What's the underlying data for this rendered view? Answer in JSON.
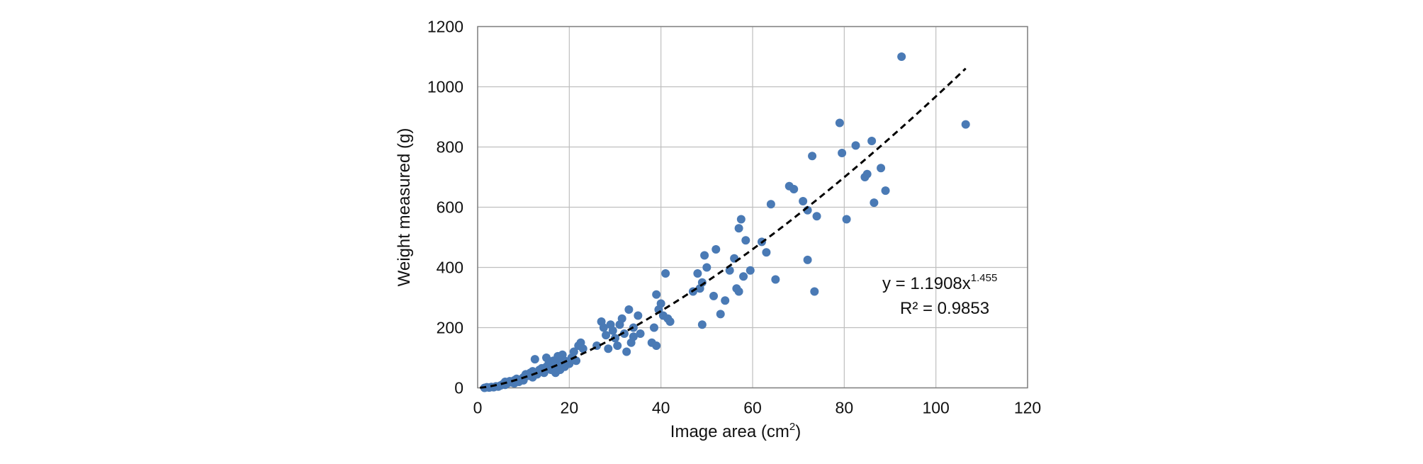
{
  "chart_data": {
    "type": "scatter",
    "title": "",
    "xlabel": "Image area (cm",
    "xlabel_sup": "2",
    "xlabel_tail": ")",
    "ylabel": "Weight measured (g)",
    "xlim": [
      0,
      120
    ],
    "ylim": [
      0,
      1200
    ],
    "x_ticks": [
      0,
      20,
      40,
      60,
      80,
      100,
      120
    ],
    "y_ticks": [
      0,
      200,
      400,
      600,
      800,
      1000,
      1200
    ],
    "x_tick_labels": [
      "0",
      "20",
      "40",
      "60",
      "80",
      "100",
      "120"
    ],
    "y_tick_labels": [
      "0",
      "200",
      "400",
      "600",
      "800",
      "1000",
      "1200"
    ],
    "grid": true,
    "legend": "none",
    "colors": {
      "points": "#4a7ab5",
      "trendline": "#000000",
      "grid": "#bfbfbf",
      "frame": "#808080"
    },
    "series": [
      {
        "values": [
          [
            1.5,
            0
          ],
          [
            2,
            2
          ],
          [
            2.5,
            1
          ],
          [
            3,
            3
          ],
          [
            3.5,
            2
          ],
          [
            4,
            5
          ],
          [
            4.5,
            4
          ],
          [
            5,
            8
          ],
          [
            5.5,
            12
          ],
          [
            6,
            10
          ],
          [
            6,
            20
          ],
          [
            6.5,
            15
          ],
          [
            7,
            22
          ],
          [
            7.5,
            18
          ],
          [
            8,
            25
          ],
          [
            8,
            15
          ],
          [
            8.5,
            30
          ],
          [
            9,
            20
          ],
          [
            9.5,
            28
          ],
          [
            10,
            35
          ],
          [
            10,
            25
          ],
          [
            10.5,
            45
          ],
          [
            11,
            40
          ],
          [
            11.5,
            50
          ],
          [
            12,
            35
          ],
          [
            12,
            55
          ],
          [
            12.5,
            95
          ],
          [
            13,
            45
          ],
          [
            13.5,
            60
          ],
          [
            14,
            65
          ],
          [
            14.5,
            50
          ],
          [
            15,
            70
          ],
          [
            15,
            100
          ],
          [
            15.5,
            80
          ],
          [
            16,
            60
          ],
          [
            16.5,
            90
          ],
          [
            17,
            75
          ],
          [
            17,
            50
          ],
          [
            17.5,
            105
          ],
          [
            18,
            85
          ],
          [
            18,
            60
          ],
          [
            18.5,
            110
          ],
          [
            19,
            70
          ],
          [
            19,
            90
          ],
          [
            20,
            80
          ],
          [
            20.5,
            100
          ],
          [
            21,
            120
          ],
          [
            21.5,
            90
          ],
          [
            22,
            140
          ],
          [
            22.5,
            150
          ],
          [
            23,
            130
          ],
          [
            26,
            140
          ],
          [
            27,
            220
          ],
          [
            27.5,
            200
          ],
          [
            28,
            175
          ],
          [
            28.5,
            130
          ],
          [
            29,
            210
          ],
          [
            29.5,
            190
          ],
          [
            30,
            165
          ],
          [
            30.5,
            140
          ],
          [
            31,
            210
          ],
          [
            31.5,
            230
          ],
          [
            32,
            180
          ],
          [
            32.5,
            120
          ],
          [
            33,
            260
          ],
          [
            33.5,
            150
          ],
          [
            34,
            200
          ],
          [
            34,
            170
          ],
          [
            35,
            240
          ],
          [
            35.5,
            180
          ],
          [
            38,
            150
          ],
          [
            38.5,
            200
          ],
          [
            39,
            310
          ],
          [
            39,
            140
          ],
          [
            39.5,
            260
          ],
          [
            40,
            280
          ],
          [
            40.5,
            240
          ],
          [
            41,
            380
          ],
          [
            41.5,
            230
          ],
          [
            42,
            220
          ],
          [
            47,
            320
          ],
          [
            48,
            380
          ],
          [
            48.5,
            330
          ],
          [
            49,
            350
          ],
          [
            49,
            210
          ],
          [
            49.5,
            440
          ],
          [
            50,
            400
          ],
          [
            51.5,
            305
          ],
          [
            52,
            460
          ],
          [
            53,
            245
          ],
          [
            54,
            290
          ],
          [
            55,
            390
          ],
          [
            56,
            430
          ],
          [
            56.5,
            330
          ],
          [
            57,
            320
          ],
          [
            57,
            530
          ],
          [
            57.5,
            560
          ],
          [
            58,
            370
          ],
          [
            58.5,
            490
          ],
          [
            59.5,
            390
          ],
          [
            62,
            485
          ],
          [
            63,
            450
          ],
          [
            64,
            610
          ],
          [
            65,
            360
          ],
          [
            68,
            670
          ],
          [
            69,
            660
          ],
          [
            71,
            620
          ],
          [
            72,
            425
          ],
          [
            72,
            590
          ],
          [
            73,
            770
          ],
          [
            73.5,
            320
          ],
          [
            74,
            570
          ],
          [
            79,
            880
          ],
          [
            79.5,
            780
          ],
          [
            80.5,
            560
          ],
          [
            82.5,
            805
          ],
          [
            84.5,
            700
          ],
          [
            85,
            710
          ],
          [
            86,
            820
          ],
          [
            86.5,
            615
          ],
          [
            88,
            730
          ],
          [
            89,
            655
          ],
          [
            92.5,
            1100
          ],
          [
            106.5,
            875
          ]
        ]
      }
    ],
    "trendline": {
      "type": "power",
      "a": 1.1908,
      "b": 1.455,
      "x_range": [
        0.5,
        106.5
      ],
      "style": "dashed"
    },
    "annotations": {
      "equation_prefix": "y = 1.1908x",
      "equation_exponent": "1.455",
      "r_squared": "R² = 0.9853"
    }
  }
}
